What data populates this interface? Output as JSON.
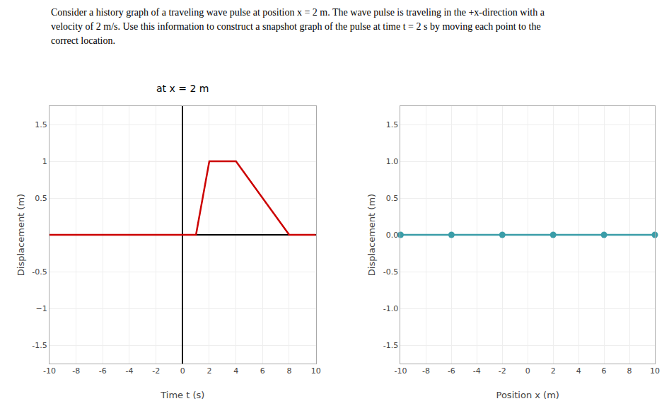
{
  "chart_data": [
    {
      "type": "line",
      "annotations": [
        "Consider a history graph of a traveling wave pulse at position x = 2 m. The wave pulse is traveling in the +x-direction with a",
        "velocity of 2 m/s. Use this information to construct a snapshot graph of the pulse at time t = 2 s by moving each point to the",
        "correct location."
      ],
      "subtitle": "at x = 2 m",
      "x_label": "Time t (s)",
      "y_label": "Displacement (m)",
      "x": [
        -10,
        1,
        2,
        4,
        8,
        10
      ],
      "values": [
        0,
        0,
        1,
        1,
        0,
        0
      ],
      "color": "#cc0000",
      "xlim": [
        -10,
        10
      ],
      "ylim": [
        -1.75,
        1.75
      ],
      "xticks": [
        -10,
        -8,
        -6,
        -4,
        -2,
        0,
        2,
        4,
        6,
        8,
        10
      ],
      "yticks": [
        -1.5,
        {
          "value": -1.0,
          "label": "−1"
        },
        -0.5,
        0.5,
        1,
        1.5
      ],
      "grid": true
    },
    {
      "type": "line",
      "x_label": "Position x (m)",
      "y_label": "Displacement (m)",
      "series": [
        {
          "type": "line",
          "x": [
            -10,
            10
          ],
          "values": [
            0,
            0
          ],
          "color": "#3a9da8"
        },
        {
          "type": "scatter",
          "x": [
            -10,
            -6,
            -2,
            2,
            6,
            10
          ],
          "values": [
            0,
            0,
            0,
            0,
            0,
            0
          ],
          "color": "#3a9da8"
        }
      ],
      "xlim": [
        -10,
        10
      ],
      "ylim": [
        -1.75,
        1.75
      ],
      "xticks": [
        -10,
        -8,
        -6,
        -4,
        -2,
        0,
        2,
        4,
        6,
        8,
        10
      ],
      "yticks": [
        -1.5,
        {
          "value": -1.0,
          "label": "-1.0"
        },
        -0.5,
        {
          "value": 0.0,
          "label": "0.0"
        },
        0.5,
        {
          "value": 1.0,
          "label": "1.0"
        },
        1.5
      ],
      "grid": true
    }
  ]
}
